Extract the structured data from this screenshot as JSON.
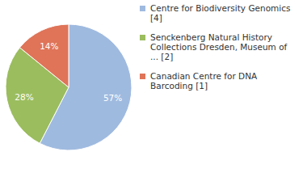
{
  "chart_data": {
    "type": "pie",
    "categories": [
      "Centre for Biodiversity Genomics [4]",
      "Senckenberg Natural History Collections Dresden, Museum of ... [2]",
      "Canadian Centre for DNA Barcoding [1]"
    ],
    "values": [
      57,
      28,
      14
    ],
    "value_labels": [
      "57%",
      "28%",
      "14%"
    ],
    "colors": [
      "#9fbadf",
      "#9bbd5e",
      "#df7458"
    ],
    "data_labels": true,
    "legend": "top-right"
  }
}
